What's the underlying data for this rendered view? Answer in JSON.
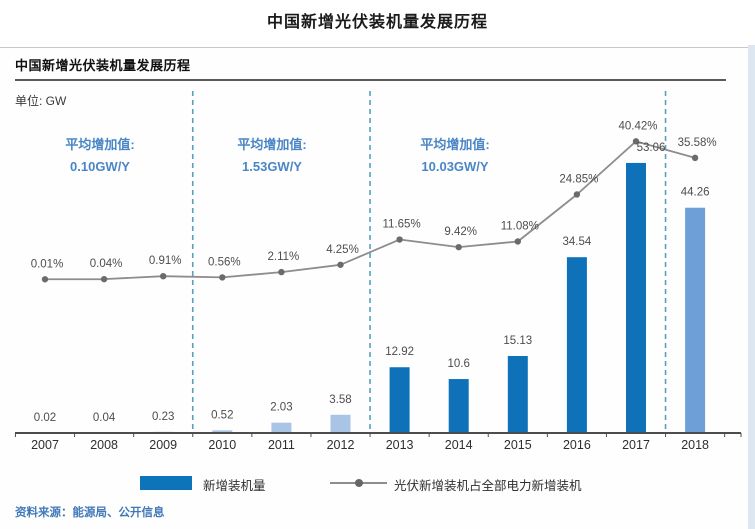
{
  "page": {
    "title": "中国新增光伏装机量发展历程",
    "source_note": "资料来源：能源局、公开信息"
  },
  "panel": {
    "title": "中国新增光伏装机量发展历程",
    "unit_label": "单位: GW"
  },
  "legend": {
    "bar_label": "新增装机量",
    "line_label": "光伏新增装机占全部电力新增装机"
  },
  "chart_data": {
    "type": "bar",
    "title": "中国新增光伏装机量发展历程",
    "xlabel": "",
    "ylabel": "GW",
    "grid": false,
    "legend_position": "bottom",
    "categories": [
      "2007",
      "2008",
      "2009",
      "2010",
      "2011",
      "2012",
      "2013",
      "2014",
      "2015",
      "2016",
      "2017",
      "2018"
    ],
    "series": [
      {
        "name": "新增装机量",
        "type": "bar",
        "unit": "GW",
        "values": [
          0.02,
          0.04,
          0.23,
          0.52,
          2.03,
          3.58,
          12.92,
          10.6,
          15.13,
          34.54,
          53.06,
          44.26
        ],
        "labels": [
          "0.02",
          "0.04",
          "0.23",
          "0.52",
          "2.03",
          "3.58",
          "12.92",
          "10.6",
          "15.13",
          "34.54",
          "53.06",
          "44.26"
        ]
      },
      {
        "name": "光伏新增装机占全部电力新增装机",
        "type": "line",
        "unit": "%",
        "values": [
          0.01,
          0.04,
          0.91,
          0.56,
          2.11,
          4.25,
          11.65,
          9.42,
          11.08,
          24.85,
          40.42,
          35.58
        ],
        "labels": [
          "0.01%",
          "0.04%",
          "0.91%",
          "0.56%",
          "2.11%",
          "4.25%",
          "11.65%",
          "9.42%",
          "11.08%",
          "24.85%",
          "40.42%",
          "35.58%"
        ]
      }
    ],
    "phases": [
      {
        "label": "平均增加值:",
        "value": "0.10GW/Y",
        "end_after_index": 2
      },
      {
        "label": "平均增加值:",
        "value": "1.53GW/Y",
        "end_after_index": 5
      },
      {
        "label": "平均增加值:",
        "value": "10.03GW/Y",
        "end_after_index": 10
      }
    ],
    "bar_shades": [
      "light",
      "light",
      "light",
      "light",
      "light",
      "light",
      "dark",
      "dark",
      "dark",
      "dark",
      "dark",
      "mid"
    ],
    "colors": {
      "bar_dark": "#0f72b9",
      "bar_light": "#aac4e5",
      "bar_mid": "#6f9fd7",
      "line": "#8d8d8d",
      "dot": "#6b6b6b",
      "separator": "#57a0c2",
      "annotation": "#4a86c6",
      "axis": "#4d4d4d",
      "value_label": "#4d4d4d",
      "year_label": "#2e2e2e"
    }
  }
}
